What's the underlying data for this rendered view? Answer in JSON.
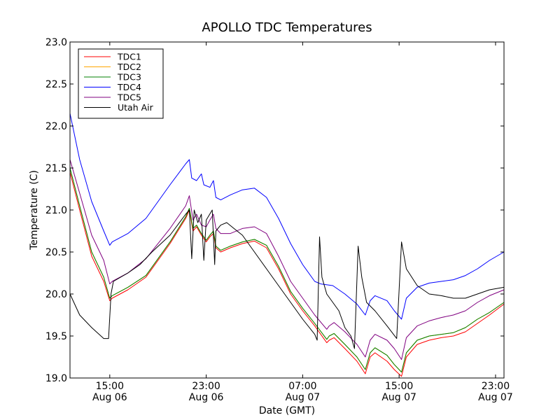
{
  "chart_data": {
    "type": "line",
    "title": "APOLLO TDC Temperatures",
    "xlabel": "Date (GMT)",
    "ylabel": "Temperature (C)",
    "x_unit": "hours since Aug 06 00:00 GMT",
    "xlim": [
      11.7,
      47.7
    ],
    "ylim": [
      19.0,
      23.0
    ],
    "y_ticks": [
      {
        "value": 19.0,
        "label": "19.0"
      },
      {
        "value": 19.5,
        "label": "19.5"
      },
      {
        "value": 20.0,
        "label": "20.0"
      },
      {
        "value": 20.5,
        "label": "20.5"
      },
      {
        "value": 21.0,
        "label": "21.0"
      },
      {
        "value": 21.5,
        "label": "21.5"
      },
      {
        "value": 22.0,
        "label": "22.0"
      },
      {
        "value": 22.5,
        "label": "22.5"
      },
      {
        "value": 23.0,
        "label": "23.0"
      }
    ],
    "x_ticks": [
      {
        "value": 15,
        "time": "15:00",
        "date": "Aug 06"
      },
      {
        "value": 23,
        "time": "23:00",
        "date": "Aug 06"
      },
      {
        "value": 31,
        "time": "07:00",
        "date": "Aug 07"
      },
      {
        "value": 39,
        "time": "15:00",
        "date": "Aug 07"
      },
      {
        "value": 47,
        "time": "23:00",
        "date": "Aug 07"
      }
    ],
    "legend_position": "top-left",
    "series": [
      {
        "name": "TDC1",
        "color": "#ff0000",
        "points": [
          [
            11.7,
            21.45
          ],
          [
            12.5,
            21.0
          ],
          [
            13.5,
            20.45
          ],
          [
            14.5,
            20.15
          ],
          [
            15.0,
            19.92
          ],
          [
            15.2,
            19.95
          ],
          [
            16.5,
            20.05
          ],
          [
            18.0,
            20.2
          ],
          [
            20.0,
            20.6
          ],
          [
            21.3,
            20.9
          ],
          [
            21.6,
            21.0
          ],
          [
            21.9,
            20.75
          ],
          [
            22.2,
            20.8
          ],
          [
            22.6,
            20.7
          ],
          [
            23.0,
            20.62
          ],
          [
            23.3,
            20.68
          ],
          [
            23.6,
            20.72
          ],
          [
            23.8,
            20.55
          ],
          [
            24.2,
            20.5
          ],
          [
            25.0,
            20.55
          ],
          [
            26.0,
            20.6
          ],
          [
            27.0,
            20.63
          ],
          [
            28.0,
            20.55
          ],
          [
            29.0,
            20.3
          ],
          [
            30.0,
            20.0
          ],
          [
            31.0,
            19.8
          ],
          [
            32.0,
            19.62
          ],
          [
            33.0,
            19.42
          ],
          [
            33.2,
            19.45
          ],
          [
            33.6,
            19.48
          ],
          [
            34.5,
            19.35
          ],
          [
            35.5,
            19.2
          ],
          [
            36.2,
            19.05
          ],
          [
            36.6,
            19.25
          ],
          [
            37.0,
            19.3
          ],
          [
            38.0,
            19.2
          ],
          [
            38.6,
            19.1
          ],
          [
            39.2,
            19.02
          ],
          [
            39.6,
            19.25
          ],
          [
            40.5,
            19.4
          ],
          [
            41.5,
            19.45
          ],
          [
            42.5,
            19.48
          ],
          [
            43.5,
            19.5
          ],
          [
            44.5,
            19.55
          ],
          [
            45.5,
            19.65
          ],
          [
            46.5,
            19.75
          ],
          [
            47.7,
            19.88
          ]
        ]
      },
      {
        "name": "TDC2",
        "color": "#ffa500",
        "points": [
          [
            11.7,
            21.5
          ],
          [
            12.5,
            21.05
          ],
          [
            13.5,
            20.5
          ],
          [
            14.5,
            20.2
          ],
          [
            15.0,
            19.95
          ],
          [
            15.2,
            19.98
          ],
          [
            16.5,
            20.08
          ],
          [
            18.0,
            20.22
          ],
          [
            20.0,
            20.62
          ],
          [
            21.3,
            20.92
          ],
          [
            21.6,
            21.02
          ],
          [
            21.9,
            20.78
          ],
          [
            22.2,
            20.82
          ],
          [
            22.6,
            20.72
          ],
          [
            23.0,
            20.64
          ],
          [
            23.3,
            20.7
          ],
          [
            23.6,
            20.75
          ],
          [
            23.8,
            20.57
          ],
          [
            24.2,
            20.52
          ],
          [
            25.0,
            20.57
          ],
          [
            26.0,
            20.62
          ],
          [
            27.0,
            20.65
          ],
          [
            28.0,
            20.58
          ],
          [
            29.0,
            20.33
          ],
          [
            30.0,
            20.03
          ],
          [
            31.0,
            19.83
          ],
          [
            32.0,
            19.65
          ],
          [
            33.0,
            19.46
          ],
          [
            33.2,
            19.5
          ],
          [
            33.6,
            19.53
          ],
          [
            34.5,
            19.4
          ],
          [
            35.5,
            19.25
          ],
          [
            36.2,
            19.1
          ],
          [
            36.6,
            19.3
          ],
          [
            37.0,
            19.36
          ],
          [
            38.0,
            19.27
          ],
          [
            38.6,
            19.16
          ],
          [
            39.2,
            19.07
          ],
          [
            39.6,
            19.3
          ],
          [
            40.5,
            19.45
          ],
          [
            41.5,
            19.5
          ],
          [
            42.5,
            19.52
          ],
          [
            43.5,
            19.54
          ],
          [
            44.5,
            19.6
          ],
          [
            45.5,
            19.7
          ],
          [
            46.5,
            19.78
          ],
          [
            47.7,
            19.9
          ]
        ]
      },
      {
        "name": "TDC3",
        "color": "#008000",
        "points": [
          [
            11.7,
            21.5
          ],
          [
            12.5,
            21.05
          ],
          [
            13.5,
            20.5
          ],
          [
            14.5,
            20.2
          ],
          [
            15.0,
            19.95
          ],
          [
            15.2,
            19.98
          ],
          [
            16.5,
            20.08
          ],
          [
            18.0,
            20.22
          ],
          [
            20.0,
            20.62
          ],
          [
            21.3,
            20.92
          ],
          [
            21.6,
            21.02
          ],
          [
            21.9,
            20.78
          ],
          [
            22.2,
            20.82
          ],
          [
            22.6,
            20.72
          ],
          [
            23.0,
            20.64
          ],
          [
            23.3,
            20.7
          ],
          [
            23.6,
            20.75
          ],
          [
            23.8,
            20.57
          ],
          [
            24.2,
            20.52
          ],
          [
            25.0,
            20.57
          ],
          [
            26.0,
            20.62
          ],
          [
            27.0,
            20.65
          ],
          [
            28.0,
            20.58
          ],
          [
            29.0,
            20.33
          ],
          [
            30.0,
            20.03
          ],
          [
            31.0,
            19.83
          ],
          [
            32.0,
            19.65
          ],
          [
            33.0,
            19.46
          ],
          [
            33.2,
            19.5
          ],
          [
            33.6,
            19.53
          ],
          [
            34.5,
            19.4
          ],
          [
            35.5,
            19.25
          ],
          [
            36.2,
            19.1
          ],
          [
            36.6,
            19.3
          ],
          [
            37.0,
            19.36
          ],
          [
            38.0,
            19.27
          ],
          [
            38.6,
            19.16
          ],
          [
            39.2,
            19.07
          ],
          [
            39.6,
            19.3
          ],
          [
            40.5,
            19.45
          ],
          [
            41.5,
            19.5
          ],
          [
            42.5,
            19.52
          ],
          [
            43.5,
            19.54
          ],
          [
            44.5,
            19.6
          ],
          [
            45.5,
            19.7
          ],
          [
            46.5,
            19.78
          ],
          [
            47.7,
            19.9
          ]
        ]
      },
      {
        "name": "TDC4",
        "color": "#0000ff",
        "points": [
          [
            11.7,
            22.15
          ],
          [
            12.5,
            21.6
          ],
          [
            13.5,
            21.1
          ],
          [
            14.5,
            20.75
          ],
          [
            15.0,
            20.58
          ],
          [
            15.2,
            20.62
          ],
          [
            16.5,
            20.72
          ],
          [
            18.0,
            20.9
          ],
          [
            20.0,
            21.3
          ],
          [
            21.3,
            21.55
          ],
          [
            21.6,
            21.6
          ],
          [
            21.8,
            21.38
          ],
          [
            22.2,
            21.35
          ],
          [
            22.6,
            21.43
          ],
          [
            22.8,
            21.3
          ],
          [
            23.3,
            21.27
          ],
          [
            23.6,
            21.35
          ],
          [
            23.8,
            21.15
          ],
          [
            24.2,
            21.12
          ],
          [
            25.0,
            21.18
          ],
          [
            26.0,
            21.24
          ],
          [
            27.0,
            21.26
          ],
          [
            28.0,
            21.15
          ],
          [
            29.0,
            20.9
          ],
          [
            30.0,
            20.6
          ],
          [
            31.0,
            20.35
          ],
          [
            32.0,
            20.15
          ],
          [
            32.5,
            20.12
          ],
          [
            33.5,
            20.1
          ],
          [
            34.5,
            20.0
          ],
          [
            35.5,
            19.88
          ],
          [
            36.2,
            19.75
          ],
          [
            36.6,
            19.92
          ],
          [
            37.0,
            19.98
          ],
          [
            38.0,
            19.92
          ],
          [
            38.6,
            19.8
          ],
          [
            39.2,
            19.7
          ],
          [
            39.6,
            19.95
          ],
          [
            40.5,
            20.08
          ],
          [
            41.5,
            20.13
          ],
          [
            42.5,
            20.15
          ],
          [
            43.5,
            20.17
          ],
          [
            44.5,
            20.22
          ],
          [
            45.5,
            20.3
          ],
          [
            46.5,
            20.4
          ],
          [
            47.7,
            20.5
          ]
        ]
      },
      {
        "name": "TDC5",
        "color": "#800080",
        "points": [
          [
            11.7,
            21.6
          ],
          [
            12.5,
            21.2
          ],
          [
            13.5,
            20.7
          ],
          [
            14.5,
            20.4
          ],
          [
            15.0,
            20.12
          ],
          [
            15.2,
            20.15
          ],
          [
            16.5,
            20.25
          ],
          [
            18.0,
            20.42
          ],
          [
            20.0,
            20.78
          ],
          [
            21.3,
            21.05
          ],
          [
            21.6,
            21.17
          ],
          [
            21.9,
            20.88
          ],
          [
            22.2,
            20.95
          ],
          [
            22.6,
            20.82
          ],
          [
            23.0,
            20.8
          ],
          [
            23.3,
            20.88
          ],
          [
            23.6,
            20.95
          ],
          [
            23.8,
            20.78
          ],
          [
            24.2,
            20.72
          ],
          [
            25.0,
            20.72
          ],
          [
            26.0,
            20.78
          ],
          [
            27.0,
            20.8
          ],
          [
            28.0,
            20.72
          ],
          [
            29.0,
            20.45
          ],
          [
            30.0,
            20.15
          ],
          [
            31.0,
            19.95
          ],
          [
            32.0,
            19.75
          ],
          [
            33.0,
            19.58
          ],
          [
            33.2,
            19.62
          ],
          [
            33.6,
            19.66
          ],
          [
            34.5,
            19.55
          ],
          [
            35.5,
            19.4
          ],
          [
            36.2,
            19.25
          ],
          [
            36.6,
            19.45
          ],
          [
            37.0,
            19.52
          ],
          [
            38.0,
            19.45
          ],
          [
            38.6,
            19.35
          ],
          [
            39.2,
            19.22
          ],
          [
            39.6,
            19.48
          ],
          [
            40.5,
            19.62
          ],
          [
            41.5,
            19.68
          ],
          [
            42.5,
            19.72
          ],
          [
            43.5,
            19.75
          ],
          [
            44.5,
            19.8
          ],
          [
            45.5,
            19.9
          ],
          [
            46.5,
            19.98
          ],
          [
            47.7,
            20.05
          ]
        ]
      },
      {
        "name": "Utah Air",
        "color": "#000000",
        "points": [
          [
            11.7,
            20.0
          ],
          [
            12.5,
            19.75
          ],
          [
            13.5,
            19.6
          ],
          [
            14.5,
            19.47
          ],
          [
            14.9,
            19.47
          ],
          [
            15.1,
            20.0
          ],
          [
            15.3,
            20.15
          ],
          [
            16.5,
            20.25
          ],
          [
            17.5,
            20.35
          ],
          [
            18.5,
            20.5
          ],
          [
            20.0,
            20.7
          ],
          [
            21.3,
            20.95
          ],
          [
            21.6,
            21.0
          ],
          [
            21.8,
            20.42
          ],
          [
            22.0,
            21.0
          ],
          [
            22.3,
            20.85
          ],
          [
            22.6,
            20.95
          ],
          [
            22.8,
            20.4
          ],
          [
            23.0,
            20.88
          ],
          [
            23.5,
            21.0
          ],
          [
            23.7,
            20.35
          ],
          [
            23.8,
            20.75
          ],
          [
            24.2,
            20.82
          ],
          [
            24.7,
            20.85
          ],
          [
            25.3,
            20.78
          ],
          [
            26.0,
            20.7
          ],
          [
            27.0,
            20.5
          ],
          [
            28.0,
            20.3
          ],
          [
            29.0,
            20.1
          ],
          [
            30.0,
            19.9
          ],
          [
            31.0,
            19.7
          ],
          [
            32.0,
            19.52
          ],
          [
            32.2,
            19.45
          ],
          [
            32.4,
            20.68
          ],
          [
            32.6,
            20.2
          ],
          [
            33.0,
            20.0
          ],
          [
            34.0,
            19.8
          ],
          [
            34.5,
            19.6
          ],
          [
            35.0,
            19.5
          ],
          [
            35.3,
            19.35
          ],
          [
            35.6,
            20.57
          ],
          [
            35.9,
            20.2
          ],
          [
            36.3,
            19.9
          ],
          [
            37.0,
            19.8
          ],
          [
            38.0,
            19.62
          ],
          [
            38.8,
            19.47
          ],
          [
            39.2,
            20.62
          ],
          [
            39.6,
            20.3
          ],
          [
            40.5,
            20.1
          ],
          [
            41.5,
            20.0
          ],
          [
            42.5,
            19.98
          ],
          [
            43.5,
            19.95
          ],
          [
            44.5,
            19.95
          ],
          [
            45.5,
            20.0
          ],
          [
            46.5,
            20.05
          ],
          [
            47.7,
            20.08
          ]
        ]
      }
    ]
  }
}
